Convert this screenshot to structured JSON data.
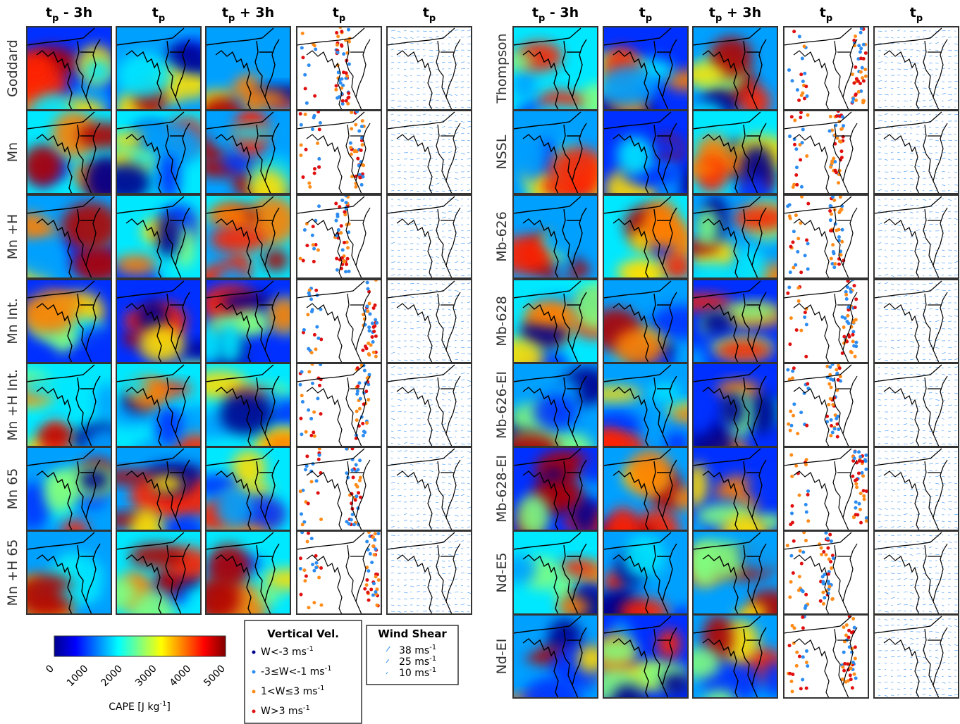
{
  "columns": [
    {
      "t": "t",
      "sub": "p",
      "rest": " - 3h"
    },
    {
      "t": "t",
      "sub": "p",
      "rest": ""
    },
    {
      "t": "t",
      "sub": "p",
      "rest": " + 3h"
    },
    {
      "t": "t",
      "sub": "p",
      "rest": ""
    },
    {
      "t": "t",
      "sub": "p",
      "rest": ""
    }
  ],
  "left_rows": [
    "Goddard",
    "Mn",
    "Mn +H",
    "Mn Int.",
    "Mn +H Int.",
    "Mn 65",
    "Mn +H 65"
  ],
  "right_rows": [
    "Thompson",
    "NSSL",
    "Mb-626",
    "Mb-628",
    "Mb-626-EI",
    "Mb-628-EI",
    "Nd-E5",
    "Nd-EI"
  ],
  "colorbar": {
    "ticks": [
      "0",
      "1000",
      "2000",
      "3000",
      "4000",
      "5000"
    ],
    "label": {
      "text": "CAPE [J kg",
      "sup": "-1",
      "end": "]"
    }
  },
  "vertical_legend": {
    "title": "Vertical Vel.",
    "items": [
      {
        "text": "W<-3 ms",
        "sup": "-1"
      },
      {
        "text": "-3≤W<-1 ms",
        "sup": "-1"
      },
      {
        "text": "1<W≤3 ms",
        "sup": "-1"
      },
      {
        "text": "W>3 ms",
        "sup": "-1"
      }
    ]
  },
  "shear_legend": {
    "title": "Wind Shear",
    "items": [
      {
        "text": "38 ms",
        "sup": "-1"
      },
      {
        "text": "25 ms",
        "sup": "-1"
      },
      {
        "text": "10 ms",
        "sup": "-1"
      }
    ]
  }
}
